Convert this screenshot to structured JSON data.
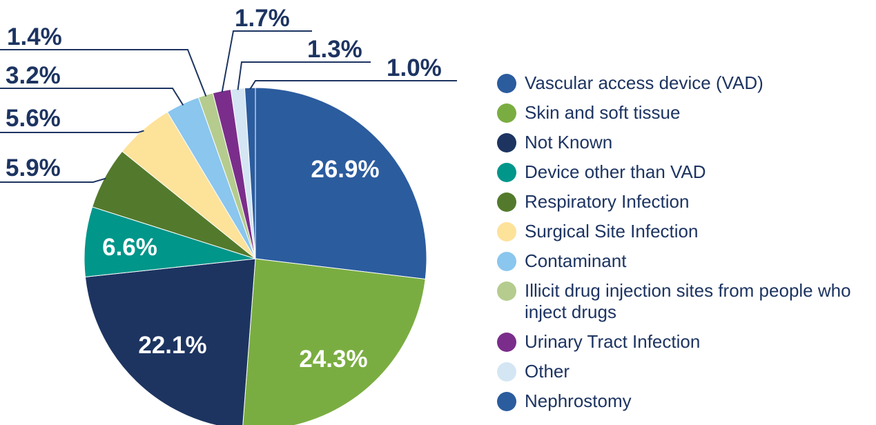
{
  "chart_data": {
    "type": "pie",
    "categories": [
      "Vascular access device (VAD)",
      "Skin and soft tissue",
      "Not Known",
      "Device other than VAD",
      "Respiratory Infection",
      "Surgical Site Infection",
      "Contaminant",
      "Illicit drug injection sites from people who inject drugs",
      "Urinary Tract Infection",
      "Other",
      "Nephrostomy"
    ],
    "values": [
      26.9,
      24.3,
      22.1,
      6.6,
      5.9,
      5.6,
      3.2,
      1.4,
      1.7,
      1.3,
      1.0
    ],
    "value_labels": [
      "26.9%",
      "24.3%",
      "22.1%",
      "6.6%",
      "5.9%",
      "5.6%",
      "3.2%",
      "1.4%",
      "1.7%",
      "1.3%",
      "1.0%"
    ],
    "colors": [
      "#2b5c9e",
      "#7aad41",
      "#1d3461",
      "#00968a",
      "#537a2c",
      "#fde29a",
      "#8ac6ee",
      "#b5cc8e",
      "#7b2d8b",
      "#d4e6f3",
      "#2b5c9e"
    ],
    "legend": true
  }
}
